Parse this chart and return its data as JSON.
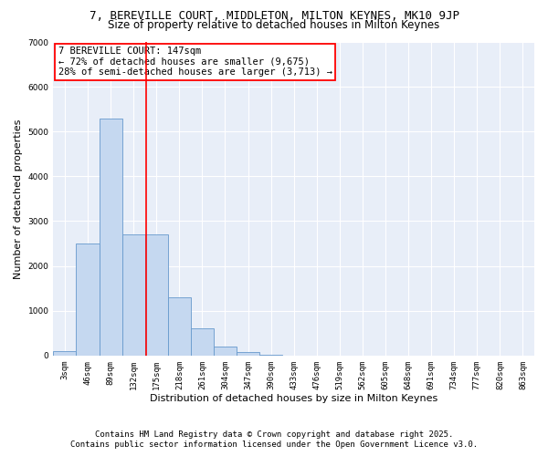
{
  "title1": "7, BEREVILLE COURT, MIDDLETON, MILTON KEYNES, MK10 9JP",
  "title2": "Size of property relative to detached houses in Milton Keynes",
  "xlabel": "Distribution of detached houses by size in Milton Keynes",
  "ylabel": "Number of detached properties",
  "categories": [
    "3sqm",
    "46sqm",
    "89sqm",
    "132sqm",
    "175sqm",
    "218sqm",
    "261sqm",
    "304sqm",
    "347sqm",
    "390sqm",
    "433sqm",
    "476sqm",
    "519sqm",
    "562sqm",
    "605sqm",
    "648sqm",
    "691sqm",
    "734sqm",
    "777sqm",
    "820sqm",
    "863sqm"
  ],
  "bar_heights": [
    90,
    2500,
    5300,
    2700,
    2700,
    1300,
    600,
    200,
    80,
    20,
    5,
    2,
    1,
    0,
    0,
    0,
    0,
    0,
    0,
    0,
    0
  ],
  "bar_color": "#c5d8f0",
  "bar_edge_color": "#6699cc",
  "vline_color": "red",
  "vline_pos": 3.55,
  "annotation_title": "7 BEREVILLE COURT: 147sqm",
  "annotation_line1": "← 72% of detached houses are smaller (9,675)",
  "annotation_line2": "28% of semi-detached houses are larger (3,713) →",
  "ylim": [
    0,
    7000
  ],
  "yticks": [
    0,
    1000,
    2000,
    3000,
    4000,
    5000,
    6000,
    7000
  ],
  "bg_color": "#e8eef8",
  "footer1": "Contains HM Land Registry data © Crown copyright and database right 2025.",
  "footer2": "Contains public sector information licensed under the Open Government Licence v3.0.",
  "title1_fontsize": 9.0,
  "title2_fontsize": 8.5,
  "annotation_fontsize": 7.5,
  "tick_fontsize": 6.5,
  "ylabel_fontsize": 8.0,
  "xlabel_fontsize": 8.0,
  "footer_fontsize": 6.5
}
